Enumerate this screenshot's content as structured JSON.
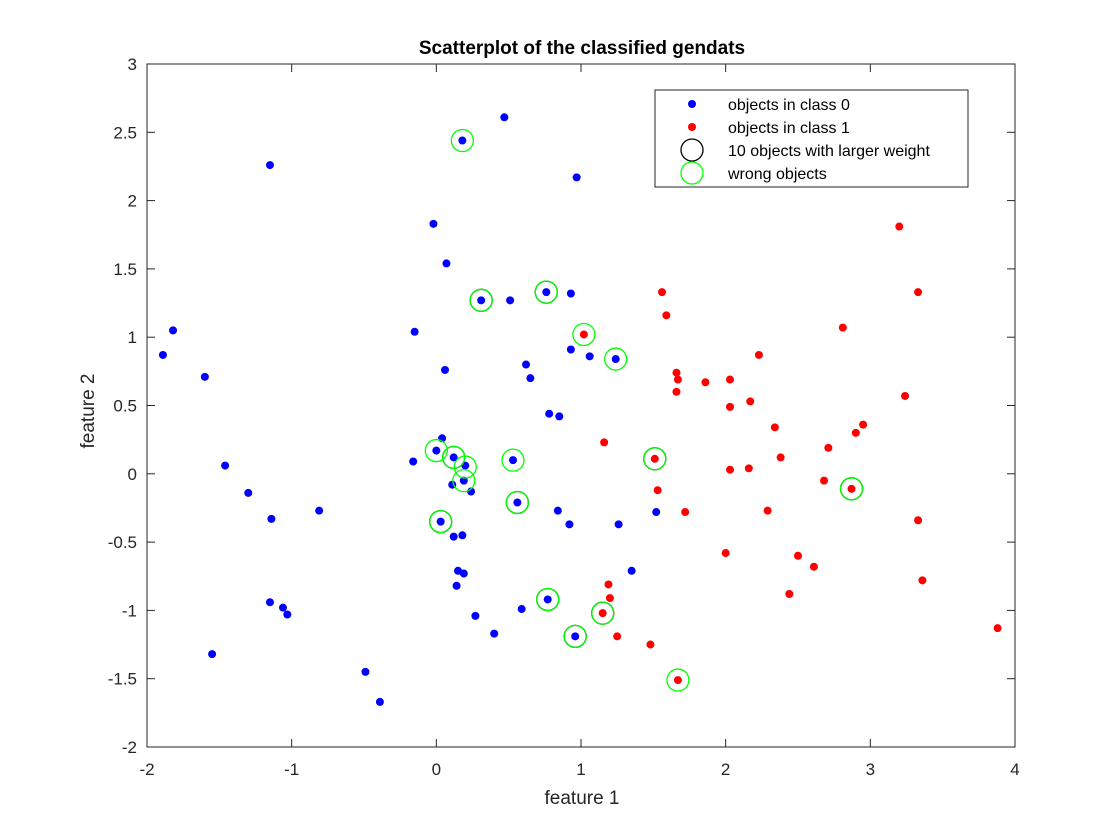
{
  "chart_data": {
    "type": "scatter",
    "title": "Scatterplot of the classified gendats",
    "xlabel": "feature 1",
    "ylabel": "feature 2",
    "xlim": [
      -2,
      4
    ],
    "ylim": [
      -2,
      3
    ],
    "xticks": [
      "-2",
      "-1",
      "0",
      "1",
      "2",
      "3",
      "4"
    ],
    "yticks": [
      "-2",
      "-1.5",
      "-1",
      "-0.5",
      "0",
      "0.5",
      "1",
      "1.5",
      "2",
      "2.5",
      "3"
    ],
    "grid": false,
    "legend_position": "top-right",
    "series": [
      {
        "name": "objects in class 0",
        "color": "#0000ff",
        "marker": "dot",
        "points": [
          [
            0.47,
            2.61
          ],
          [
            0.18,
            2.44
          ],
          [
            -1.15,
            2.26
          ],
          [
            0.97,
            2.17
          ],
          [
            -0.02,
            1.83
          ],
          [
            0.07,
            1.54
          ],
          [
            0.31,
            1.27
          ],
          [
            0.51,
            1.27
          ],
          [
            0.76,
            1.33
          ],
          [
            0.93,
            1.32
          ],
          [
            -1.82,
            1.05
          ],
          [
            -0.15,
            1.04
          ],
          [
            1.06,
            0.86
          ],
          [
            1.24,
            0.84
          ],
          [
            -1.89,
            0.87
          ],
          [
            0.93,
            0.91
          ],
          [
            0.62,
            0.8
          ],
          [
            -1.6,
            0.71
          ],
          [
            0.06,
            0.76
          ],
          [
            0.65,
            0.7
          ],
          [
            0.78,
            0.44
          ],
          [
            0.85,
            0.42
          ],
          [
            0.04,
            0.26
          ],
          [
            0.0,
            0.17
          ],
          [
            0.12,
            0.12
          ],
          [
            0.53,
            0.1
          ],
          [
            -0.16,
            0.09
          ],
          [
            0.2,
            0.06
          ],
          [
            -1.46,
            0.06
          ],
          [
            0.11,
            -0.08
          ],
          [
            0.19,
            -0.05
          ],
          [
            0.24,
            -0.13
          ],
          [
            -1.3,
            -0.14
          ],
          [
            -0.81,
            -0.27
          ],
          [
            0.56,
            -0.21
          ],
          [
            0.84,
            -0.27
          ],
          [
            1.52,
            -0.28
          ],
          [
            -1.14,
            -0.33
          ],
          [
            0.03,
            -0.35
          ],
          [
            0.92,
            -0.37
          ],
          [
            1.26,
            -0.37
          ],
          [
            0.12,
            -0.46
          ],
          [
            0.18,
            -0.45
          ],
          [
            0.15,
            -0.71
          ],
          [
            0.19,
            -0.73
          ],
          [
            1.35,
            -0.71
          ],
          [
            0.14,
            -0.82
          ],
          [
            -1.15,
            -0.94
          ],
          [
            -1.06,
            -0.98
          ],
          [
            -1.03,
            -1.03
          ],
          [
            0.77,
            -0.92
          ],
          [
            0.59,
            -0.99
          ],
          [
            0.27,
            -1.04
          ],
          [
            0.4,
            -1.17
          ],
          [
            0.96,
            -1.19
          ],
          [
            -1.55,
            -1.32
          ],
          [
            -0.49,
            -1.45
          ],
          [
            -0.39,
            -1.67
          ]
        ]
      },
      {
        "name": "objects in class 1",
        "color": "#ff0000",
        "marker": "dot",
        "points": [
          [
            3.2,
            1.81
          ],
          [
            1.56,
            1.33
          ],
          [
            3.33,
            1.33
          ],
          [
            1.59,
            1.16
          ],
          [
            2.81,
            1.07
          ],
          [
            1.02,
            1.02
          ],
          [
            2.23,
            0.87
          ],
          [
            1.66,
            0.74
          ],
          [
            1.67,
            0.69
          ],
          [
            1.86,
            0.67
          ],
          [
            2.03,
            0.69
          ],
          [
            1.66,
            0.6
          ],
          [
            3.24,
            0.57
          ],
          [
            2.17,
            0.53
          ],
          [
            2.03,
            0.49
          ],
          [
            2.95,
            0.36
          ],
          [
            2.34,
            0.34
          ],
          [
            2.9,
            0.3
          ],
          [
            1.16,
            0.23
          ],
          [
            2.71,
            0.19
          ],
          [
            1.51,
            0.11
          ],
          [
            2.38,
            0.12
          ],
          [
            2.03,
            0.03
          ],
          [
            2.16,
            0.04
          ],
          [
            2.68,
            -0.05
          ],
          [
            2.87,
            -0.11
          ],
          [
            1.53,
            -0.12
          ],
          [
            2.29,
            -0.27
          ],
          [
            1.72,
            -0.28
          ],
          [
            3.33,
            -0.34
          ],
          [
            2.0,
            -0.58
          ],
          [
            2.5,
            -0.6
          ],
          [
            2.61,
            -0.68
          ],
          [
            3.36,
            -0.78
          ],
          [
            1.19,
            -0.81
          ],
          [
            2.44,
            -0.88
          ],
          [
            1.2,
            -0.91
          ],
          [
            1.15,
            -1.02
          ],
          [
            3.88,
            -1.13
          ],
          [
            1.25,
            -1.19
          ],
          [
            1.48,
            -1.25
          ],
          [
            1.67,
            -1.51
          ]
        ]
      },
      {
        "name": "10 objects with larger weight",
        "color": "#000000",
        "marker": "circle",
        "points": [
          [
            0.31,
            1.27
          ],
          [
            0.76,
            1.33
          ],
          [
            0.12,
            0.12
          ],
          [
            1.51,
            0.11
          ],
          [
            0.56,
            -0.21
          ],
          [
            2.87,
            -0.11
          ],
          [
            0.03,
            -0.35
          ],
          [
            0.77,
            -0.92
          ],
          [
            1.15,
            -1.02
          ],
          [
            0.96,
            -1.19
          ]
        ]
      },
      {
        "name": "wrong objects",
        "color": "#00ff00",
        "marker": "circle",
        "points": [
          [
            0.18,
            2.44
          ],
          [
            0.31,
            1.27
          ],
          [
            0.76,
            1.33
          ],
          [
            1.02,
            1.02
          ],
          [
            1.24,
            0.84
          ],
          [
            0.0,
            0.17
          ],
          [
            0.12,
            0.12
          ],
          [
            0.2,
            0.05
          ],
          [
            0.19,
            -0.05
          ],
          [
            0.53,
            0.1
          ],
          [
            1.51,
            0.11
          ],
          [
            0.56,
            -0.21
          ],
          [
            2.87,
            -0.11
          ],
          [
            0.03,
            -0.35
          ],
          [
            0.77,
            -0.92
          ],
          [
            1.15,
            -1.02
          ],
          [
            0.96,
            -1.19
          ],
          [
            1.67,
            -1.51
          ]
        ]
      }
    ]
  }
}
